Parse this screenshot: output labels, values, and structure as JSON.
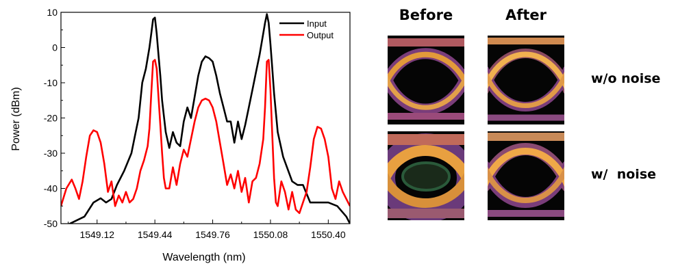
{
  "chart_data": {
    "type": "line",
    "xlabel": "Wavelength (nm)",
    "ylabel": "Power (dBm)",
    "xlim": [
      1548.92,
      1550.52
    ],
    "ylim": [
      -50,
      10
    ],
    "xticks": [
      "1549.12",
      "1549.44",
      "1549.76",
      "1550.08",
      "1550.40"
    ],
    "yticks": [
      "10",
      "0",
      "-10",
      "-20",
      "-30",
      "-40",
      "-50"
    ],
    "legend_position": "top-right",
    "series": [
      {
        "name": "Input",
        "color": "#000000",
        "x": [
          1548.93,
          1549.05,
          1549.1,
          1549.14,
          1549.17,
          1549.2,
          1549.23,
          1549.27,
          1549.31,
          1549.33,
          1549.35,
          1549.37,
          1549.39,
          1549.41,
          1549.42,
          1549.43,
          1549.44,
          1549.45,
          1549.46,
          1549.47,
          1549.48,
          1549.5,
          1549.52,
          1549.54,
          1549.56,
          1549.58,
          1549.6,
          1549.62,
          1549.64,
          1549.66,
          1549.68,
          1549.7,
          1549.72,
          1549.74,
          1549.76,
          1549.78,
          1549.8,
          1549.82,
          1549.84,
          1549.86,
          1549.88,
          1549.9,
          1549.92,
          1549.94,
          1549.96,
          1549.98,
          1550.0,
          1550.02,
          1550.04,
          1550.05,
          1550.06,
          1550.07,
          1550.08,
          1550.09,
          1550.1,
          1550.12,
          1550.15,
          1550.2,
          1550.23,
          1550.26,
          1550.3,
          1550.36,
          1550.4,
          1550.45,
          1550.5,
          1550.52
        ],
        "y": [
          -51,
          -48,
          -44,
          -42.8,
          -44,
          -43,
          -39,
          -35,
          -30,
          -25,
          -20,
          -10,
          -6,
          0,
          4,
          8,
          8.5,
          4,
          -2,
          -8,
          -15,
          -24,
          -28.5,
          -24,
          -27,
          -28,
          -21,
          -17,
          -20,
          -14,
          -8,
          -4,
          -2.5,
          -3,
          -4,
          -8,
          -13,
          -17,
          -21,
          -21,
          -27,
          -21,
          -26,
          -22,
          -17,
          -12,
          -7,
          -2,
          4,
          7,
          9.5,
          7,
          1,
          -6,
          -13,
          -24,
          -31,
          -38,
          -39,
          -39,
          -44,
          -44,
          -44,
          -45,
          -48,
          -50
        ]
      },
      {
        "name": "Output",
        "color": "#ff0000",
        "x": [
          1548.92,
          1548.95,
          1548.98,
          1549.0,
          1549.02,
          1549.04,
          1549.06,
          1549.08,
          1549.1,
          1549.12,
          1549.14,
          1549.16,
          1549.18,
          1549.2,
          1549.22,
          1549.24,
          1549.26,
          1549.28,
          1549.3,
          1549.32,
          1549.34,
          1549.36,
          1549.38,
          1549.4,
          1549.41,
          1549.42,
          1549.43,
          1549.44,
          1549.45,
          1549.46,
          1549.47,
          1549.48,
          1549.49,
          1549.5,
          1549.52,
          1549.54,
          1549.56,
          1549.58,
          1549.6,
          1549.62,
          1549.64,
          1549.66,
          1549.68,
          1549.7,
          1549.72,
          1549.74,
          1549.76,
          1549.78,
          1549.8,
          1549.82,
          1549.84,
          1549.86,
          1549.88,
          1549.9,
          1549.92,
          1549.94,
          1549.96,
          1549.98,
          1550.0,
          1550.02,
          1550.04,
          1550.05,
          1550.06,
          1550.07,
          1550.08,
          1550.09,
          1550.1,
          1550.11,
          1550.12,
          1550.14,
          1550.16,
          1550.18,
          1550.2,
          1550.22,
          1550.24,
          1550.26,
          1550.28,
          1550.3,
          1550.32,
          1550.34,
          1550.36,
          1550.38,
          1550.4,
          1550.42,
          1550.44,
          1550.46,
          1550.48,
          1550.5,
          1550.52
        ],
        "y": [
          -45,
          -40,
          -37.5,
          -40,
          -43,
          -38,
          -31,
          -25,
          -23.5,
          -24,
          -27,
          -33,
          -41,
          -38,
          -45,
          -42,
          -44,
          -41,
          -44,
          -43,
          -40,
          -35,
          -32,
          -28,
          -23,
          -13,
          -4,
          -3.5,
          -6,
          -14,
          -22,
          -30,
          -37,
          -40,
          -40,
          -34,
          -39,
          -33,
          -29,
          -31,
          -26,
          -21,
          -17,
          -15,
          -14.5,
          -15,
          -17,
          -21,
          -27,
          -33,
          -39,
          -36,
          -40,
          -35,
          -41,
          -37,
          -44,
          -38,
          -37,
          -33,
          -26,
          -17,
          -4,
          -3.5,
          -12,
          -25,
          -37,
          -44,
          -45,
          -38,
          -41,
          -46,
          -41,
          -46,
          -47,
          -44,
          -41,
          -34,
          -26,
          -22.5,
          -23,
          -26,
          -31,
          -40,
          -43,
          -38,
          -41,
          -43,
          -45
        ]
      }
    ]
  },
  "eye_diagrams": {
    "headings": [
      "Before",
      "After"
    ],
    "row_labels": [
      "w/o noise",
      "w/  noise"
    ]
  }
}
